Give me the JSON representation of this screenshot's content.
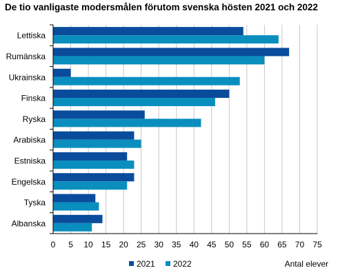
{
  "chart_data": {
    "type": "bar",
    "orientation": "horizontal",
    "title": "De tio vanligaste modersmålen förutom svenska hösten 2021 och 2022",
    "xlabel": "Antal elever",
    "ylabel": "",
    "categories": [
      "Lettiska",
      "Rumänska",
      "Ukrainska",
      "Finska",
      "Ryska",
      "Arabiska",
      "Estniska",
      "Engelska",
      "Tyska",
      "Albanska"
    ],
    "series": [
      {
        "name": "2021",
        "color": "#0A4C9C",
        "values": [
          54,
          67,
          5,
          50,
          26,
          23,
          21,
          23,
          12,
          14
        ]
      },
      {
        "name": "2022",
        "color": "#0A8EBE",
        "values": [
          64,
          60,
          53,
          46,
          42,
          25,
          23,
          21,
          13,
          11
        ]
      }
    ],
    "xlim": [
      0,
      75
    ],
    "xticks": [
      0,
      5,
      10,
      15,
      20,
      25,
      30,
      35,
      40,
      45,
      50,
      55,
      60,
      65,
      70,
      75
    ],
    "grid": "vertical",
    "legend_position": "bottom"
  }
}
